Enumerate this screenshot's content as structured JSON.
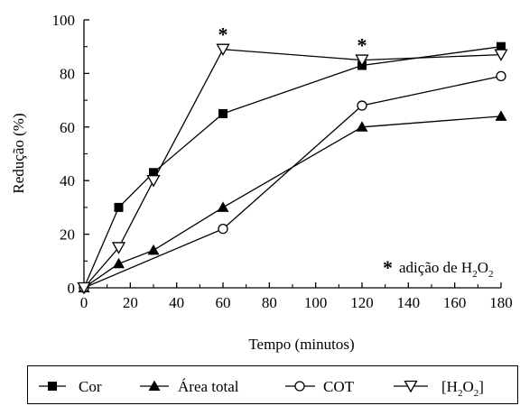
{
  "chart_data": {
    "type": "line",
    "xlabel": "Tempo (minutos)",
    "ylabel": "Redução (%)",
    "xlim": [
      0,
      180
    ],
    "ylim": [
      0,
      100
    ],
    "xticks": [
      0,
      20,
      40,
      60,
      80,
      100,
      120,
      140,
      160,
      180
    ],
    "yticks": [
      0,
      20,
      40,
      60,
      80,
      100
    ],
    "grid": false,
    "legend_position": "bottom",
    "annotation": {
      "symbol": "*",
      "text": "adição de H",
      "sub1": "2",
      "mid": "O",
      "sub2": "2",
      "marked_x": [
        60,
        120
      ]
    },
    "series": [
      {
        "name": "Cor",
        "marker": "square-filled",
        "x": [
          0,
          15,
          30,
          60,
          120,
          180
        ],
        "values": [
          0,
          30,
          43,
          65,
          83,
          90
        ]
      },
      {
        "name": "Área total",
        "marker": "triangle-filled",
        "x": [
          0,
          15,
          30,
          60,
          120,
          180
        ],
        "values": [
          0,
          9,
          14,
          30,
          60,
          64
        ]
      },
      {
        "name": "COT",
        "marker": "circle-open",
        "x": [
          0,
          60,
          120,
          180
        ],
        "values": [
          0,
          22,
          68,
          79
        ]
      },
      {
        "name": "[H2O2]",
        "marker": "triangle-down-open",
        "x": [
          0,
          15,
          30,
          60,
          120,
          180
        ],
        "values": [
          0,
          15,
          40,
          89,
          85,
          87
        ]
      }
    ]
  },
  "legend": {
    "cor": "Cor",
    "area": "Área total",
    "cot": "COT",
    "h2o2_open": "[H",
    "h2o2_sub1": "2",
    "h2o2_mid": "O",
    "h2o2_sub2": "2",
    "h2o2_close": "]"
  }
}
